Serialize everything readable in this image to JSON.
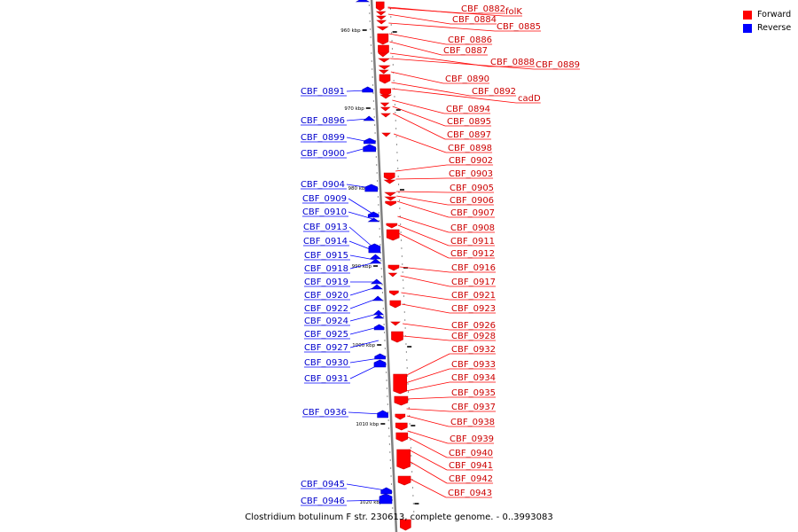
{
  "legend": {
    "forward_label": "Forward",
    "reverse_label": "Reverse",
    "forward_color": "#ff0000",
    "reverse_color": "#0000ff"
  },
  "caption": "Clostridium botulinum F str. 230613, complete genome. - 0..3993083",
  "ruler": [
    {
      "label": "960 kbp",
      "kbp": 960
    },
    {
      "label": "970 kbp",
      "kbp": 970
    },
    {
      "label": "980 kbp",
      "kbp": 980
    },
    {
      "label": "990 kbp",
      "kbp": 990
    },
    {
      "label": "1000 kbp",
      "kbp": 1000
    },
    {
      "label": "1010 kbp",
      "kbp": 1010
    },
    {
      "label": "1020 kbp",
      "kbp": 1020
    }
  ],
  "forward_genes": [
    "CBF_0882",
    "folK",
    "CBF_0884",
    "CBF_0885",
    "CBF_0886",
    "CBF_0887",
    "CBF_0888",
    "CBF_0889",
    "CBF_0890",
    "CBF_0892",
    "cadD",
    "CBF_0894",
    "CBF_0895",
    "CBF_0897",
    "CBF_0898",
    "CBF_0902",
    "CBF_0903",
    "CBF_0905",
    "CBF_0906",
    "CBF_0907",
    "CBF_0908",
    "CBF_0911",
    "CBF_0912",
    "CBF_0916",
    "CBF_0917",
    "CBF_0921",
    "CBF_0923",
    "CBF_0926",
    "CBF_0928",
    "CBF_0932",
    "CBF_0933",
    "CBF_0934",
    "CBF_0935",
    "CBF_0937",
    "CBF_0938",
    "CBF_0939",
    "CBF_0940",
    "CBF_0941",
    "CBF_0942",
    "CBF_0943"
  ],
  "reverse_genes": [
    "CBF_0891",
    "CBF_0896",
    "CBF_0899",
    "CBF_0900",
    "CBF_0904",
    "CBF_0909",
    "CBF_0910",
    "CBF_0913",
    "CBF_0914",
    "CBF_0915",
    "CBF_0918",
    "CBF_0919",
    "CBF_0920",
    "CBF_0922",
    "CBF_0924",
    "CBF_0925",
    "CBF_0927",
    "CBF_0930",
    "CBF_0931",
    "CBF_0936",
    "CBF_0945",
    "CBF_0946"
  ]
}
